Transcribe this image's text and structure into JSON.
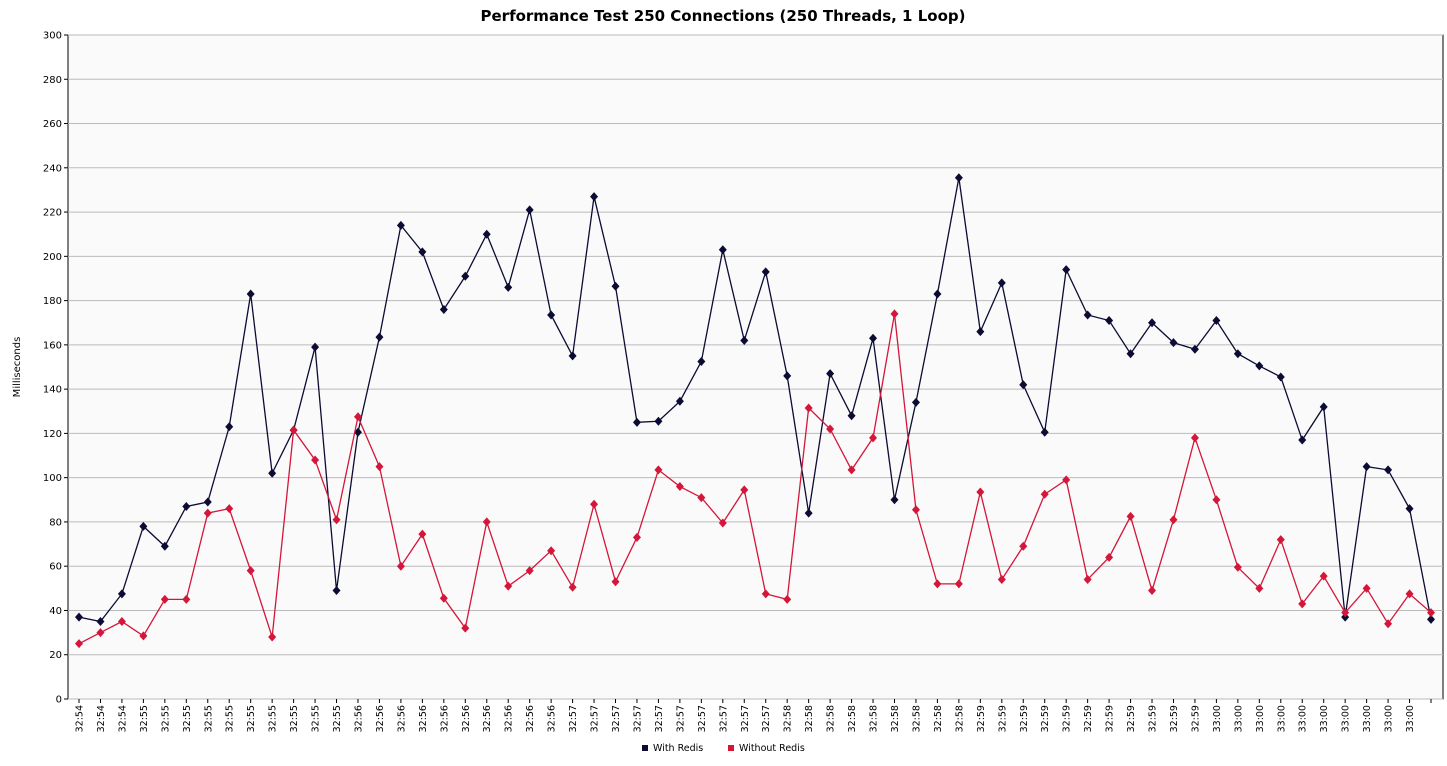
{
  "chart_data": {
    "type": "line",
    "title": "Performance Test 250 Connections (250 Threads, 1 Loop)",
    "y_label": "Milliseconds",
    "categories": [
      "32:54",
      "32:54",
      "32:54",
      "32:55",
      "32:55",
      "32:55",
      "32:55",
      "32:55",
      "32:55",
      "32:55",
      "32:55",
      "32:55",
      "32:55",
      "32:56",
      "32:56",
      "32:56",
      "32:56",
      "32:56",
      "32:56",
      "32:56",
      "32:56",
      "32:56",
      "32:56",
      "32:57",
      "32:57",
      "32:57",
      "32:57",
      "32:57",
      "32:57",
      "32:57",
      "32:57",
      "32:57",
      "32:57",
      "32:58",
      "32:58",
      "32:58",
      "32:58",
      "32:58",
      "32:58",
      "32:58",
      "32:58",
      "32:58",
      "32:59",
      "32:59",
      "32:59",
      "32:59",
      "32:59",
      "32:59",
      "32:59",
      "32:59",
      "32:59",
      "32:59",
      "32:59",
      "33:00",
      "33:00",
      "33:00",
      "33:00",
      "33:00",
      "33:00",
      "33:00",
      "33:00",
      "33:00",
      "33:00",
      null
    ],
    "series": [
      {
        "name": "With Redis",
        "color": "#0b0b33",
        "values": [
          37,
          35,
          47.5,
          78,
          69,
          87,
          89,
          123,
          183,
          102,
          121.5,
          159,
          49,
          120.5,
          163.5,
          214,
          202,
          176,
          191,
          210,
          186,
          221,
          173.5,
          155,
          227,
          186.5,
          125,
          125.5,
          134.5,
          152.5,
          203,
          162,
          193,
          146,
          84,
          147,
          128,
          163,
          90,
          134,
          183,
          235.5,
          166,
          188,
          142,
          120.5,
          194,
          173.5,
          171,
          156,
          170,
          161,
          158,
          171,
          156,
          150.5,
          145.5,
          117,
          132,
          37,
          105,
          103.5,
          86,
          36
        ]
      },
      {
        "name": "Without Redis",
        "color": "#d4163a",
        "values": [
          25,
          30,
          35,
          28.5,
          45,
          45,
          84,
          86,
          58,
          28,
          121.5,
          108,
          81,
          127.5,
          105,
          60,
          74.5,
          45.5,
          32,
          80,
          51,
          58,
          67,
          50.5,
          88,
          53,
          73,
          103.5,
          96,
          91,
          79.5,
          94.5,
          47.5,
          45,
          131.5,
          122,
          103.5,
          118,
          174,
          85.5,
          52,
          52,
          93.5,
          54,
          69,
          92.5,
          99,
          54,
          64,
          82.5,
          49,
          81,
          118,
          90,
          59.5,
          50,
          72,
          43,
          55.5,
          39,
          50,
          34,
          47.5,
          39
        ]
      }
    ],
    "ylim": [
      0,
      300
    ],
    "yticks": [
      0,
      20,
      40,
      60,
      80,
      100,
      120,
      140,
      160,
      180,
      200,
      220,
      240,
      260,
      280,
      300
    ],
    "grid": true,
    "legend": "bottom"
  }
}
